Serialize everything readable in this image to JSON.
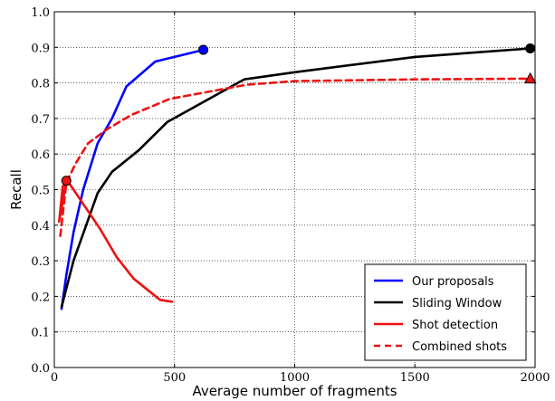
{
  "chart_data": {
    "type": "line",
    "title": "",
    "xlabel": "Average number of fragments",
    "ylabel": "Recall",
    "xlim": [
      0,
      2000
    ],
    "ylim": [
      0.0,
      1.0
    ],
    "xticks": [
      0,
      500,
      1000,
      1500,
      2000
    ],
    "xtick_labels": [
      "0",
      "500",
      "1000",
      "1500",
      "2000"
    ],
    "yticks": [
      0.0,
      0.1,
      0.2,
      0.3,
      0.4,
      0.5,
      0.6,
      0.7,
      0.8,
      0.9,
      1.0
    ],
    "ytick_labels": [
      "0.0",
      "0.1",
      "0.2",
      "0.3",
      "0.4",
      "0.5",
      "0.6",
      "0.7",
      "0.8",
      "0.9",
      "1.0"
    ],
    "grid": true,
    "legend_position": "bottom-right",
    "series": [
      {
        "name": "Our proposals",
        "color": "#0000ff",
        "dash": "solid",
        "end_marker": "circle",
        "points": [
          [
            30,
            0.165
          ],
          [
            50,
            0.26
          ],
          [
            80,
            0.38
          ],
          [
            120,
            0.5
          ],
          [
            180,
            0.63
          ],
          [
            240,
            0.7
          ],
          [
            300,
            0.79
          ],
          [
            420,
            0.86
          ],
          [
            620,
            0.893
          ]
        ]
      },
      {
        "name": "Sliding Window",
        "color": "#000000",
        "dash": "solid",
        "end_marker": "circle",
        "points": [
          [
            30,
            0.17
          ],
          [
            80,
            0.3
          ],
          [
            180,
            0.49
          ],
          [
            240,
            0.55
          ],
          [
            350,
            0.61
          ],
          [
            470,
            0.69
          ],
          [
            790,
            0.81
          ],
          [
            1000,
            0.83
          ],
          [
            1500,
            0.873
          ],
          [
            1980,
            0.897
          ]
        ]
      },
      {
        "name": "Shot detection",
        "color": "#ee1111",
        "dash": "solid",
        "end_marker": "",
        "points": [
          [
            490,
            0.185
          ],
          [
            440,
            0.19
          ],
          [
            330,
            0.25
          ],
          [
            260,
            0.31
          ],
          [
            190,
            0.39
          ],
          [
            110,
            0.47
          ],
          [
            60,
            0.52
          ],
          [
            35,
            0.51
          ],
          [
            20,
            0.41
          ],
          [
            50,
            0.525
          ]
        ],
        "marker_point": [
          50,
          0.525
        ],
        "marker": "circle"
      },
      {
        "name": "Combined shots",
        "color": "#ee1111",
        "dash": "dashed",
        "end_marker": "triangle",
        "points": [
          [
            25,
            0.37
          ],
          [
            50,
            0.52
          ],
          [
            90,
            0.575
          ],
          [
            140,
            0.63
          ],
          [
            220,
            0.67
          ],
          [
            320,
            0.71
          ],
          [
            480,
            0.755
          ],
          [
            600,
            0.77
          ],
          [
            800,
            0.795
          ],
          [
            1000,
            0.805
          ],
          [
            1500,
            0.81
          ],
          [
            1980,
            0.812
          ]
        ]
      }
    ]
  }
}
